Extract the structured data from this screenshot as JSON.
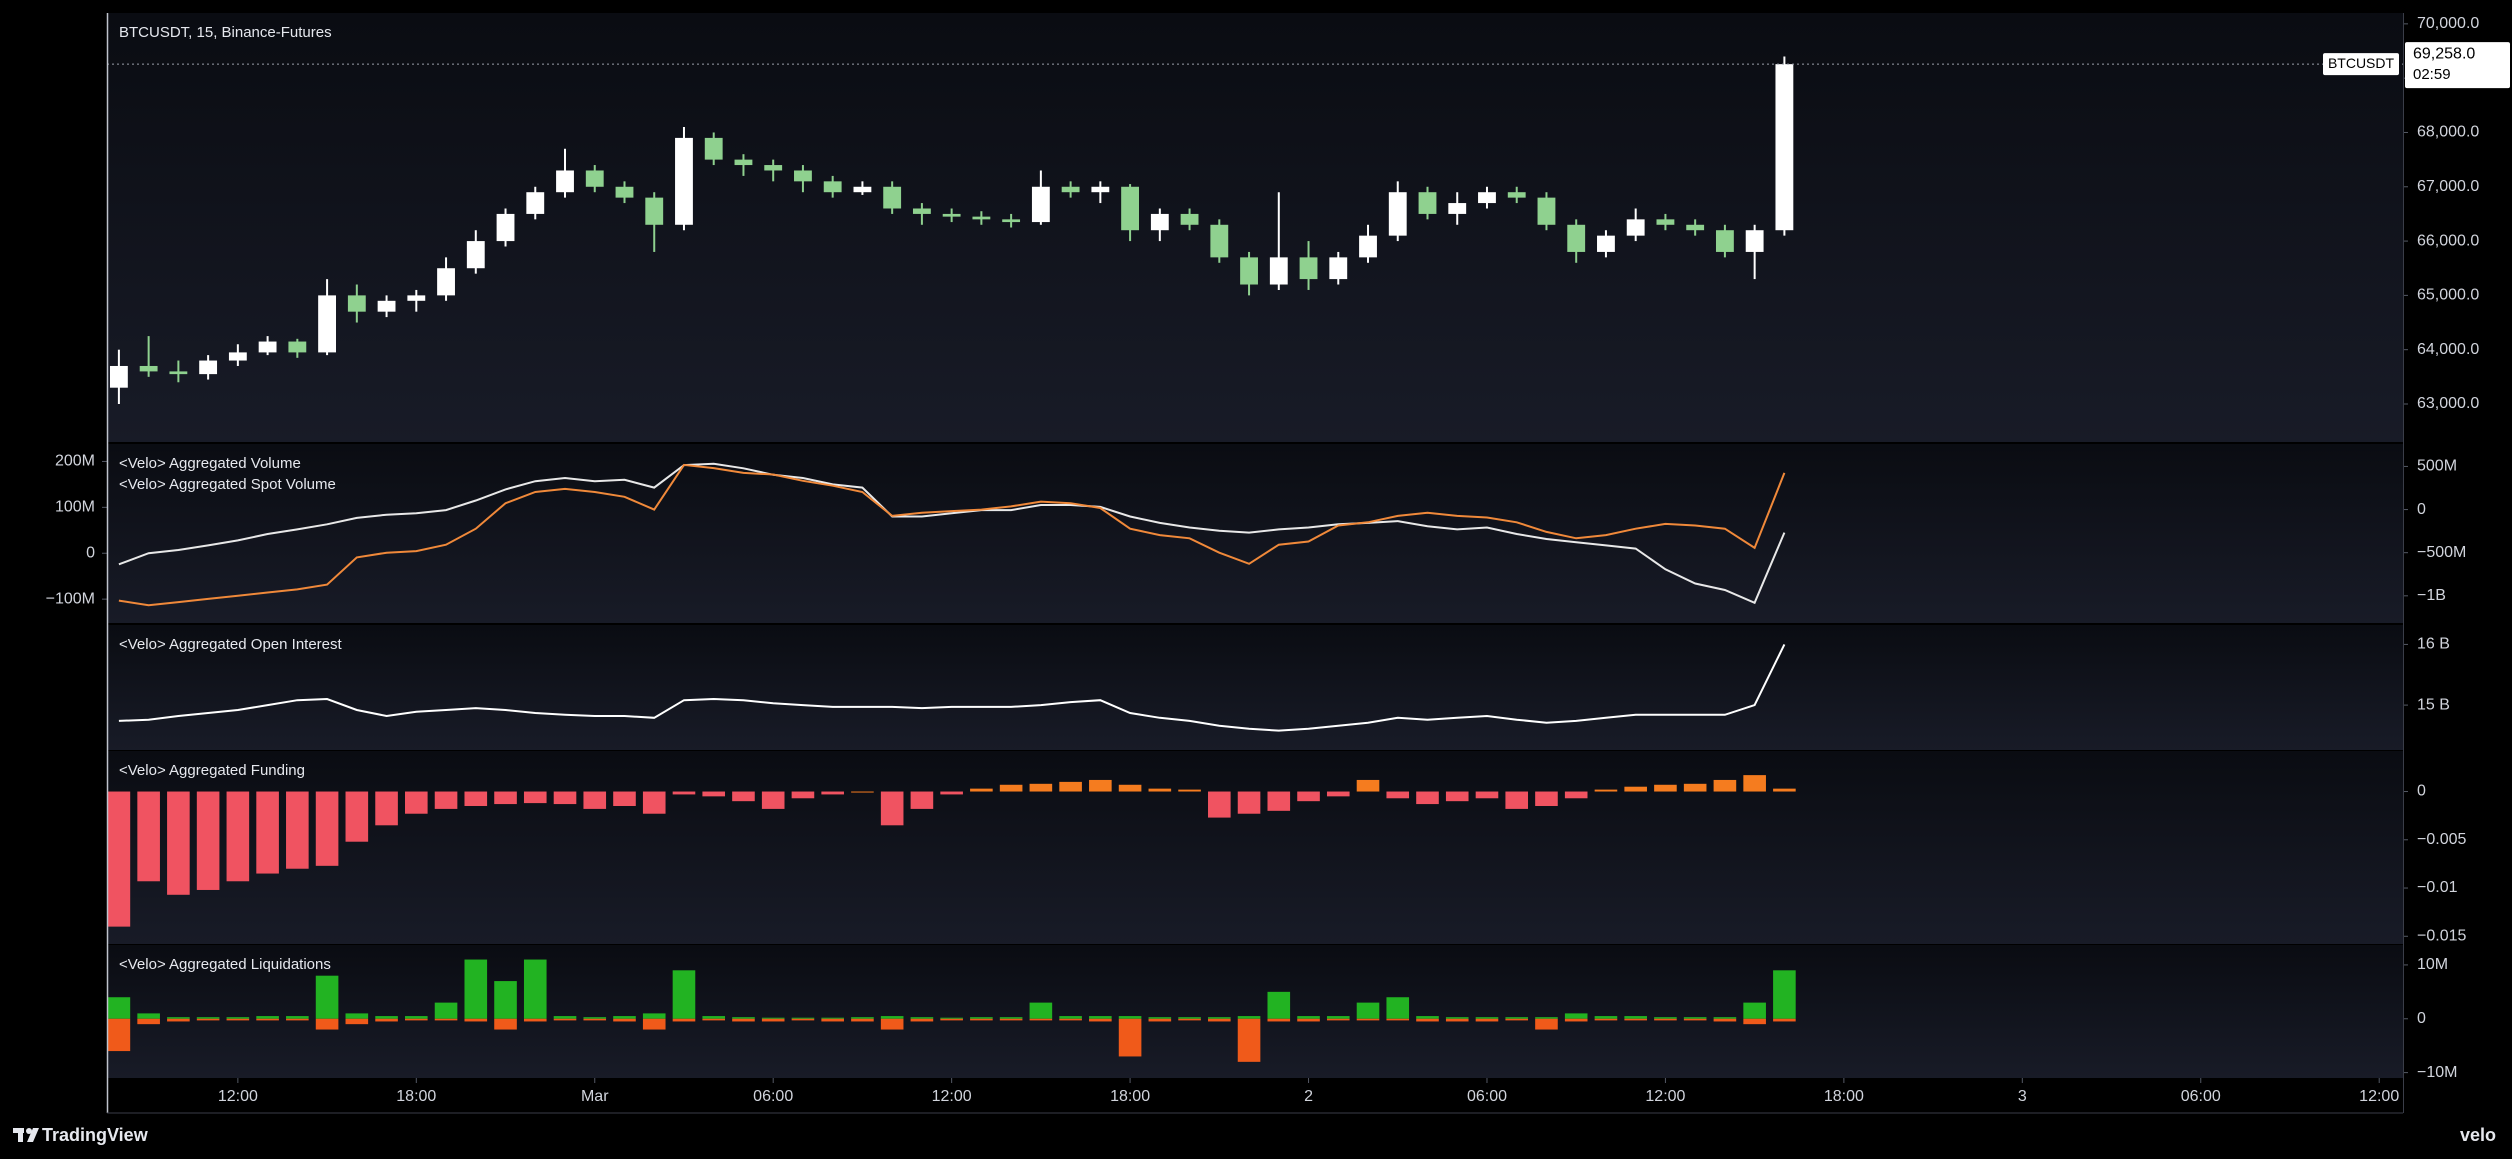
{
  "chart_data": [
    {
      "type": "candlestick",
      "title": "BTCUSDT, 15, Binance-Futures",
      "x": [
        8,
        9,
        10,
        11,
        12,
        13,
        14,
        15,
        16,
        17,
        18,
        19,
        20,
        21,
        22,
        23,
        24,
        25,
        26,
        27,
        28,
        29,
        30,
        31,
        32,
        33,
        34,
        35,
        36,
        37,
        38,
        39,
        40,
        41,
        42,
        43,
        44,
        45,
        46,
        47,
        48,
        49,
        50,
        51,
        52,
        53,
        54,
        55,
        56,
        57,
        58,
        59,
        60,
        61,
        62,
        63,
        64
      ],
      "xlim": [
        7.6,
        84.8
      ],
      "open": [
        63300,
        63700,
        63600,
        63550,
        63800,
        63950,
        64150,
        63950,
        65000,
        64700,
        64900,
        65000,
        65500,
        66000,
        66500,
        66900,
        67300,
        67000,
        66800,
        66300,
        67900,
        67500,
        67400,
        67300,
        67100,
        66900,
        67000,
        66600,
        66500,
        66450,
        66400,
        66350,
        67000,
        66900,
        67000,
        66200,
        66500,
        66300,
        65700,
        65200,
        65700,
        65300,
        65700,
        66100,
        66900,
        66500,
        66700,
        66900,
        66800,
        66300,
        65800,
        66100,
        66400,
        66300,
        66200,
        65800,
        66200
      ],
      "high": [
        64000,
        64250,
        63800,
        63900,
        64100,
        64250,
        64200,
        65300,
        65200,
        65000,
        65100,
        65700,
        66200,
        66600,
        67000,
        67700,
        67400,
        67100,
        66900,
        68100,
        68000,
        67600,
        67500,
        67400,
        67200,
        67100,
        67100,
        66700,
        66600,
        66550,
        66500,
        67300,
        67100,
        67100,
        67050,
        66600,
        66600,
        66400,
        65800,
        66900,
        66000,
        65800,
        66300,
        67100,
        67000,
        66900,
        67000,
        67000,
        66900,
        66400,
        66200,
        66600,
        66500,
        66400,
        66300,
        66300,
        69400
      ],
      "low": [
        63000,
        63500,
        63400,
        63450,
        63700,
        63900,
        63850,
        63900,
        64500,
        64600,
        64700,
        64900,
        65400,
        65900,
        66400,
        66800,
        66900,
        66700,
        65800,
        66200,
        67400,
        67200,
        67100,
        66900,
        66800,
        66850,
        66500,
        66300,
        66350,
        66300,
        66250,
        66300,
        66800,
        66700,
        66000,
        66000,
        66200,
        65600,
        65000,
        65100,
        65100,
        65200,
        65600,
        66000,
        66400,
        66300,
        66600,
        66700,
        66200,
        65600,
        65700,
        66000,
        66200,
        66100,
        65700,
        65300,
        66100
      ],
      "close": [
        63700,
        63600,
        63550,
        63800,
        63950,
        64150,
        63950,
        65000,
        64700,
        64900,
        65000,
        65500,
        66000,
        66500,
        66900,
        67300,
        67000,
        66800,
        66300,
        67900,
        67500,
        67400,
        67300,
        67100,
        66900,
        67000,
        66600,
        66500,
        66450,
        66400,
        66350,
        67000,
        66900,
        67000,
        66200,
        66500,
        66300,
        65700,
        65200,
        65700,
        65300,
        65700,
        66100,
        66900,
        66500,
        66700,
        66900,
        66800,
        66300,
        65800,
        66100,
        66400,
        66300,
        66200,
        65800,
        66200,
        69258
      ],
      "up_color": "#ffffff",
      "down_color": "#8fd18f",
      "ylim": [
        62300,
        70200
      ],
      "yticks": [
        {
          "value": 63000,
          "label": "63,000.0"
        },
        {
          "value": 64000,
          "label": "64,000.0"
        },
        {
          "value": 65000,
          "label": "65,000.0"
        },
        {
          "value": 66000,
          "label": "66,000.0"
        },
        {
          "value": 67000,
          "label": "67,000.0"
        },
        {
          "value": 68000,
          "label": "68,000.0"
        },
        {
          "value": 69000,
          "label": "69,000.0"
        },
        {
          "value": 70000,
          "label": "70,000.0"
        }
      ],
      "last": {
        "value": 69258,
        "label": "69,258.0",
        "countdown": "02:59",
        "symbol": "BTCUSDT"
      }
    },
    {
      "type": "line",
      "x": [
        8,
        9,
        10,
        11,
        12,
        13,
        14,
        15,
        16,
        17,
        18,
        19,
        20,
        21,
        22,
        23,
        24,
        25,
        26,
        27,
        28,
        29,
        30,
        31,
        32,
        33,
        34,
        35,
        36,
        37,
        38,
        39,
        40,
        41,
        42,
        43,
        44,
        45,
        46,
        47,
        48,
        49,
        50,
        51,
        52,
        53,
        54,
        55,
        56,
        57,
        58,
        59,
        60,
        61,
        62,
        63,
        64
      ],
      "xlim": [
        7.6,
        84.8
      ],
      "series": [
        {
          "name": "<Velo> Aggregated Volume",
          "color": "#e8e8e8",
          "values": [
            -24,
            0,
            7,
            17,
            28,
            42,
            52,
            63,
            77,
            84,
            87,
            94,
            115,
            139,
            157,
            164,
            157,
            160,
            143,
            192,
            195,
            185,
            171,
            164,
            150,
            143,
            80,
            80,
            87,
            94,
            94,
            105,
            105,
            101,
            80,
            66,
            56,
            49,
            45,
            52,
            56,
            63,
            66,
            70,
            59,
            52,
            56,
            42,
            31,
            24,
            17,
            10,
            -35,
            -66,
            -80,
            -108,
            45
          ]
        },
        {
          "name": "<Velo> Aggregated Spot Volume",
          "color": "#f0893a",
          "axis": "y2",
          "values": [
            -1055,
            -1110,
            -1073,
            -1036,
            -1000,
            -962,
            -925,
            -870,
            -555,
            -500,
            -481,
            -407,
            -222,
            74,
            204,
            240,
            204,
            148,
            0,
            518,
            481,
            425,
            407,
            333,
            277,
            204,
            -74,
            -37,
            -18,
            0,
            37,
            92,
            74,
            18,
            -222,
            -296,
            -333,
            -500,
            -629,
            -407,
            -370,
            -185,
            -148,
            -74,
            -37,
            -74,
            -92,
            -148,
            -259,
            -333,
            -296,
            -222,
            -166,
            -185,
            -222,
            -444,
            425
          ]
        }
      ],
      "ylim": [
        -152,
        238
      ],
      "yticks": [
        {
          "value": 200,
          "label": "200M"
        },
        {
          "value": 100,
          "label": "100M"
        },
        0,
        {
          "value": -100,
          "label": "−100M"
        }
      ],
      "y2lim": [
        -1315,
        760
      ],
      "y2ticks": [
        {
          "value": 500,
          "label": "500M"
        },
        0,
        {
          "value": -500,
          "label": "−500M"
        },
        {
          "value": -1000,
          "label": "−1B"
        }
      ]
    },
    {
      "type": "line",
      "title": "<Velo> Aggregated Open Interest",
      "color": "#ffffff",
      "x": [
        8,
        9,
        10,
        11,
        12,
        13,
        14,
        15,
        16,
        17,
        18,
        19,
        20,
        21,
        22,
        23,
        24,
        25,
        26,
        27,
        28,
        29,
        30,
        31,
        32,
        33,
        34,
        35,
        36,
        37,
        38,
        39,
        40,
        41,
        42,
        43,
        44,
        45,
        46,
        47,
        48,
        49,
        50,
        51,
        52,
        53,
        54,
        55,
        56,
        57,
        58,
        59,
        60,
        61,
        62,
        63,
        64
      ],
      "xlim": [
        7.6,
        84.8
      ],
      "values": [
        14.74,
        14.76,
        14.82,
        14.87,
        14.92,
        15.0,
        15.08,
        15.1,
        14.92,
        14.82,
        14.89,
        14.92,
        14.95,
        14.92,
        14.87,
        14.84,
        14.82,
        14.82,
        14.79,
        15.08,
        15.1,
        15.08,
        15.03,
        15.0,
        14.97,
        14.97,
        14.97,
        14.95,
        14.97,
        14.97,
        14.97,
        15.0,
        15.05,
        15.08,
        14.87,
        14.79,
        14.74,
        14.66,
        14.61,
        14.58,
        14.61,
        14.66,
        14.71,
        14.79,
        14.76,
        14.79,
        14.82,
        14.76,
        14.71,
        14.74,
        14.79,
        14.84,
        14.84,
        14.84,
        14.84,
        15.0,
        16.0
      ],
      "ylim": [
        14.26,
        16.32
      ],
      "yticks": [
        {
          "value": 16,
          "label": "16 B"
        },
        {
          "value": 15,
          "label": "15 B"
        }
      ]
    },
    {
      "type": "bar",
      "title": "<Velo> Aggregated Funding",
      "positive_color": "#f57c1f",
      "negative_color": "#f05361",
      "x": [
        8,
        9,
        10,
        11,
        12,
        13,
        14,
        15,
        16,
        17,
        18,
        19,
        20,
        21,
        22,
        23,
        24,
        25,
        26,
        27,
        28,
        29,
        30,
        31,
        32,
        33,
        34,
        35,
        36,
        37,
        38,
        39,
        40,
        41,
        42,
        43,
        44,
        45,
        46,
        47,
        48,
        49,
        50,
        51,
        52,
        53,
        54,
        55,
        56,
        57,
        58,
        59,
        60,
        61,
        62,
        63,
        64
      ],
      "xlim": [
        7.6,
        84.8
      ],
      "values": [
        -0.014,
        -0.0093,
        -0.0107,
        -0.0102,
        -0.0093,
        -0.0085,
        -0.008,
        -0.0077,
        -0.0052,
        -0.0035,
        -0.0023,
        -0.0018,
        -0.0015,
        -0.0013,
        -0.0012,
        -0.0013,
        -0.0018,
        -0.0015,
        -0.0023,
        -0.0003,
        -0.0005,
        -0.001,
        -0.0018,
        -0.0007,
        -0.0003,
        0,
        -0.0035,
        -0.0018,
        -0.0003,
        0.0003,
        0.0007,
        0.0008,
        0.001,
        0.0012,
        0.0007,
        0.0003,
        0.0002,
        -0.0027,
        -0.0023,
        -0.002,
        -0.001,
        -0.0005,
        0.0012,
        -0.0007,
        -0.0013,
        -0.001,
        -0.0007,
        -0.0018,
        -0.0015,
        -0.0007,
        0.0002,
        0.0005,
        0.0007,
        0.0008,
        0.0012,
        0.0017,
        0.0003
      ],
      "ylim": [
        -0.0158,
        0.0042
      ],
      "yticks": [
        0,
        {
          "value": -0.005,
          "label": "−0.005"
        },
        {
          "value": -0.01,
          "label": "−0.01"
        },
        {
          "value": -0.015,
          "label": "−0.015"
        }
      ]
    },
    {
      "type": "bar",
      "title": "<Velo> Aggregated Liquidations",
      "x": [
        8,
        9,
        10,
        11,
        12,
        13,
        14,
        15,
        16,
        17,
        18,
        19,
        20,
        21,
        22,
        23,
        24,
        25,
        26,
        27,
        28,
        29,
        30,
        31,
        32,
        33,
        34,
        35,
        36,
        37,
        38,
        39,
        40,
        41,
        42,
        43,
        44,
        45,
        46,
        47,
        48,
        49,
        50,
        51,
        52,
        53,
        54,
        55,
        56,
        57,
        58,
        59,
        60,
        61,
        62,
        63,
        64
      ],
      "xlim": [
        7.6,
        84.8
      ],
      "series": [
        {
          "color": "#22b322",
          "values": [
            4,
            1,
            0.3,
            0.3,
            0.3,
            0.5,
            0.5,
            8,
            1,
            0.5,
            0.5,
            3,
            11,
            7,
            11,
            0.5,
            0.3,
            0.5,
            1,
            9,
            0.5,
            0.3,
            0.2,
            0.2,
            0.2,
            0.3,
            0.5,
            0.3,
            0.2,
            0.3,
            0.3,
            3,
            0.5,
            0.5,
            0.5,
            0.3,
            0.3,
            0.3,
            0.5,
            5,
            0.5,
            0.5,
            3,
            4,
            0.5,
            0.3,
            0.3,
            0.3,
            0.3,
            1,
            0.5,
            0.5,
            0.3,
            0.3,
            0.3,
            3,
            9
          ]
        },
        {
          "color": "#f05a1a",
          "values": [
            -6,
            -1,
            -0.5,
            -0.3,
            -0.3,
            -0.3,
            -0.3,
            -2,
            -1,
            -0.5,
            -0.3,
            -0.3,
            -0.5,
            -2,
            -0.5,
            -0.3,
            -0.3,
            -0.5,
            -2,
            -0.5,
            -0.3,
            -0.5,
            -0.5,
            -0.3,
            -0.5,
            -0.5,
            -2,
            -0.5,
            -0.3,
            -0.3,
            -0.3,
            -0.3,
            -0.3,
            -0.5,
            -7,
            -0.5,
            -0.3,
            -0.5,
            -8,
            -0.5,
            -0.5,
            -0.3,
            -0.3,
            -0.3,
            -0.5,
            -0.5,
            -0.5,
            -0.3,
            -2,
            -0.5,
            -0.3,
            -0.3,
            -0.3,
            -0.3,
            -0.5,
            -1,
            -0.5
          ]
        }
      ],
      "ylim": [
        -11,
        13.7
      ],
      "yticks": [
        {
          "value": 10,
          "label": "10M"
        },
        0,
        {
          "value": -10,
          "label": "−10M"
        }
      ],
      "xticks": [
        {
          "value": 12,
          "label": "12:00"
        },
        {
          "value": 18,
          "label": "18:00"
        },
        {
          "value": 24,
          "label": "Mar"
        },
        {
          "value": 30,
          "label": "06:00"
        },
        {
          "value": 36,
          "label": "12:00"
        },
        {
          "value": 42,
          "label": "18:00"
        },
        {
          "value": 48,
          "label": "2"
        },
        {
          "value": 54,
          "label": "06:00"
        },
        {
          "value": 60,
          "label": "12:00"
        },
        {
          "value": 66,
          "label": "18:00"
        },
        {
          "value": 72,
          "label": "3"
        },
        {
          "value": 78,
          "label": "06:00"
        },
        {
          "value": 84,
          "label": "12:00"
        }
      ]
    }
  ],
  "footer": {
    "brand": "TradingView",
    "source": "velo"
  }
}
